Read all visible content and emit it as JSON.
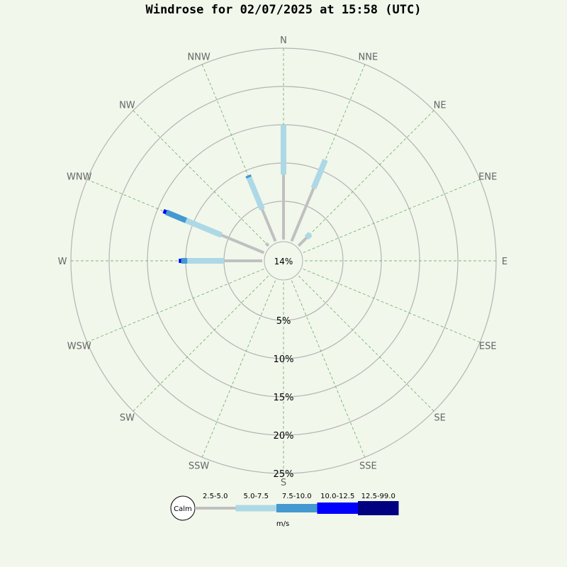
{
  "chart_data": {
    "type": "windrose",
    "title": "Windrose for 02/07/2025 at 15:58 (UTC)",
    "unit": "m/s",
    "calm_label": "Calm",
    "calm_percent_label": "14%",
    "directions": [
      "N",
      "NNE",
      "NE",
      "ENE",
      "E",
      "ESE",
      "SE",
      "SSE",
      "S",
      "SSW",
      "SW",
      "WSW",
      "W",
      "WNW",
      "NW",
      "NNW"
    ],
    "rings": [
      5,
      10,
      15,
      20,
      25
    ],
    "ring_labels": [
      "5%",
      "10%",
      "15%",
      "20%",
      "25%"
    ],
    "bins": [
      {
        "label": "2.5-5.0",
        "color": "#c0c0c0"
      },
      {
        "label": "5.0-7.5",
        "color": "#add8e6"
      },
      {
        "label": "7.5-10.0",
        "color": "#4499d1"
      },
      {
        "label": "10.0-12.5",
        "color": "#0000ff"
      },
      {
        "label": "12.5-99.0",
        "color": "#000080"
      }
    ],
    "petals": [
      {
        "direction": "N",
        "values": [
          8.5,
          6.5,
          0,
          0,
          0
        ]
      },
      {
        "direction": "NNE",
        "values": [
          7.5,
          4.0,
          0,
          0,
          0
        ]
      },
      {
        "direction": "NE",
        "values": [
          1.5,
          0.7,
          0,
          0,
          0
        ]
      },
      {
        "direction": "ENE",
        "values": [
          0,
          0,
          0,
          0,
          0
        ]
      },
      {
        "direction": "E",
        "values": [
          0,
          0,
          0,
          0,
          0
        ]
      },
      {
        "direction": "ESE",
        "values": [
          0,
          0,
          0,
          0,
          0
        ]
      },
      {
        "direction": "SE",
        "values": [
          0,
          0,
          0,
          0,
          0
        ]
      },
      {
        "direction": "SSE",
        "values": [
          0,
          0,
          0,
          0,
          0
        ]
      },
      {
        "direction": "S",
        "values": [
          0,
          0,
          0,
          0,
          0
        ]
      },
      {
        "direction": "SSW",
        "values": [
          0,
          0,
          0,
          0,
          0
        ]
      },
      {
        "direction": "SW",
        "values": [
          0,
          0,
          0,
          0,
          0
        ]
      },
      {
        "direction": "WSW",
        "values": [
          0,
          0,
          0,
          0,
          0
        ]
      },
      {
        "direction": "W",
        "values": [
          5.0,
          4.8,
          0.8,
          0.3,
          0
        ]
      },
      {
        "direction": "WNW",
        "values": [
          6.0,
          5.0,
          2.8,
          0.4,
          0
        ]
      },
      {
        "direction": "NW",
        "values": [
          0.5,
          0,
          0,
          0,
          0
        ]
      },
      {
        "direction": "NNW",
        "values": [
          4.5,
          4.5,
          0.3,
          0,
          0
        ]
      }
    ]
  }
}
